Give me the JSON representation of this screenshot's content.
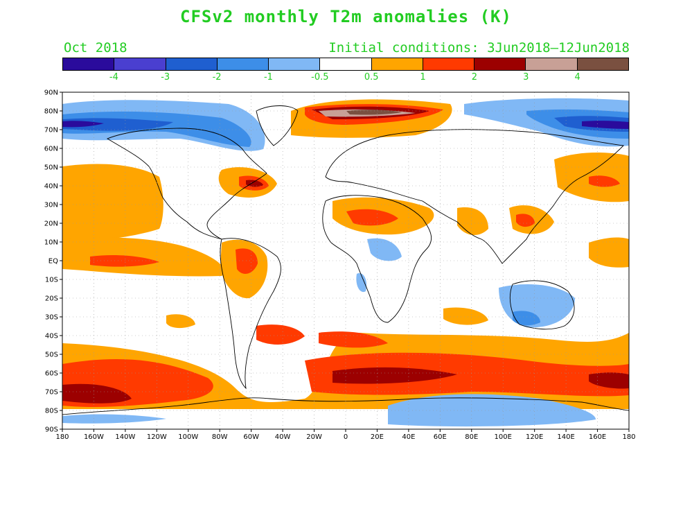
{
  "title": "CFSv2 monthly T2m anomalies (K)",
  "valid_month": "Oct 2018",
  "initial_conditions": "Initial conditions: 3Jun2018–12Jun2018",
  "colorbar": {
    "colors": [
      "#2a0b9c",
      "#4a3fd0",
      "#1f5fd0",
      "#3d8ee8",
      "#80b8f5",
      "#ffffff",
      "#ffa500",
      "#ff3a00",
      "#9c0000",
      "#c8a096",
      "#7a5040"
    ],
    "labels": [
      "-4",
      "-3",
      "-2",
      "-1",
      "-0.5",
      "0.5",
      "1",
      "2",
      "3",
      "4"
    ]
  },
  "lat_labels": [
    "90N",
    "80N",
    "70N",
    "60N",
    "50N",
    "40N",
    "30N",
    "20N",
    "10N",
    "EQ",
    "10S",
    "20S",
    "30S",
    "40S",
    "50S",
    "60S",
    "70S",
    "80S",
    "90S"
  ],
  "lon_labels": [
    "180",
    "160W",
    "140W",
    "120W",
    "100W",
    "80W",
    "60W",
    "40W",
    "20W",
    "0",
    "20E",
    "40E",
    "60E",
    "80E",
    "100E",
    "120E",
    "140E",
    "160E",
    "180"
  ]
}
